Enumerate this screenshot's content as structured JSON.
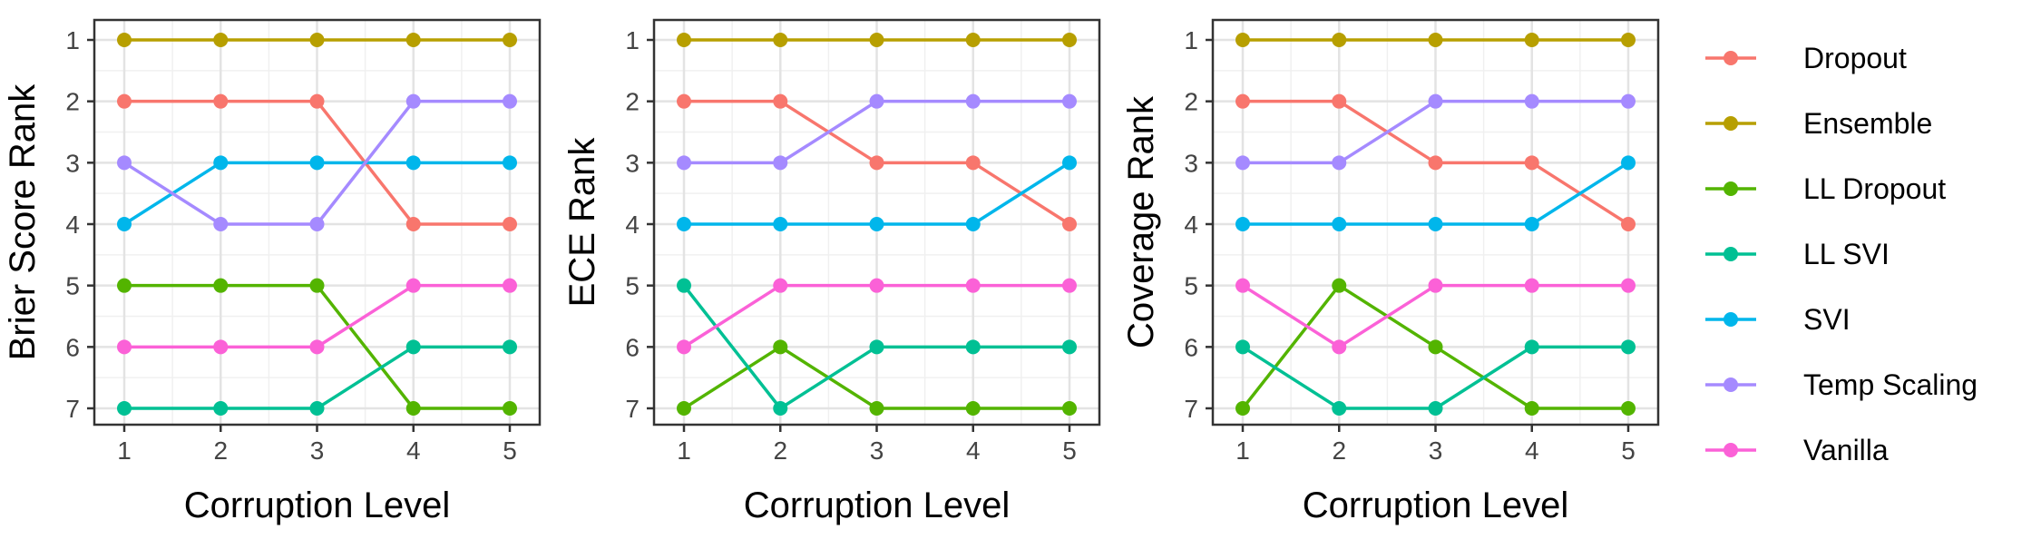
{
  "chart_data": {
    "type": "line",
    "x_categories": [
      1,
      2,
      3,
      4,
      5
    ],
    "xlabel": "Corruption Level",
    "y_ticks": [
      1,
      2,
      3,
      4,
      5,
      6,
      7
    ],
    "ylim": [
      7,
      1
    ],
    "y_reversed": true,
    "grid": true,
    "legend_position": "right",
    "series_styles": [
      {
        "name": "Dropout",
        "color": "#F8766D"
      },
      {
        "name": "Ensemble",
        "color": "#B79F00"
      },
      {
        "name": "LL Dropout",
        "color": "#53B400"
      },
      {
        "name": "LL SVI",
        "color": "#00C094"
      },
      {
        "name": "SVI",
        "color": "#00B6EB"
      },
      {
        "name": "Temp Scaling",
        "color": "#A58AFF"
      },
      {
        "name": "Vanilla",
        "color": "#FB61D7"
      }
    ],
    "panels": [
      {
        "ylabel": "Brier Score Rank",
        "series": [
          {
            "name": "Dropout",
            "values": [
              2,
              2,
              2,
              4,
              4
            ]
          },
          {
            "name": "Ensemble",
            "values": [
              1,
              1,
              1,
              1,
              1
            ]
          },
          {
            "name": "LL Dropout",
            "values": [
              5,
              5,
              5,
              7,
              7
            ]
          },
          {
            "name": "LL SVI",
            "values": [
              7,
              7,
              7,
              6,
              6
            ]
          },
          {
            "name": "SVI",
            "values": [
              4,
              3,
              3,
              3,
              3
            ]
          },
          {
            "name": "Temp Scaling",
            "values": [
              3,
              4,
              4,
              2,
              2
            ]
          },
          {
            "name": "Vanilla",
            "values": [
              6,
              6,
              6,
              5,
              5
            ]
          }
        ]
      },
      {
        "ylabel": "ECE Rank",
        "series": [
          {
            "name": "Dropout",
            "values": [
              2,
              2,
              3,
              3,
              4
            ]
          },
          {
            "name": "Ensemble",
            "values": [
              1,
              1,
              1,
              1,
              1
            ]
          },
          {
            "name": "LL Dropout",
            "values": [
              7,
              6,
              7,
              7,
              7
            ]
          },
          {
            "name": "LL SVI",
            "values": [
              5,
              7,
              6,
              6,
              6
            ]
          },
          {
            "name": "SVI",
            "values": [
              4,
              4,
              4,
              4,
              3
            ]
          },
          {
            "name": "Temp Scaling",
            "values": [
              3,
              3,
              2,
              2,
              2
            ]
          },
          {
            "name": "Vanilla",
            "values": [
              6,
              5,
              5,
              5,
              5
            ]
          }
        ]
      },
      {
        "ylabel": "Coverage Rank",
        "series": [
          {
            "name": "Dropout",
            "values": [
              2,
              2,
              3,
              3,
              4
            ]
          },
          {
            "name": "Ensemble",
            "values": [
              1,
              1,
              1,
              1,
              1
            ]
          },
          {
            "name": "LL Dropout",
            "values": [
              7,
              5,
              6,
              7,
              7
            ]
          },
          {
            "name": "LL SVI",
            "values": [
              6,
              7,
              7,
              6,
              6
            ]
          },
          {
            "name": "SVI",
            "values": [
              4,
              4,
              4,
              4,
              3
            ]
          },
          {
            "name": "Temp Scaling",
            "values": [
              3,
              3,
              2,
              2,
              2
            ]
          },
          {
            "name": "Vanilla",
            "values": [
              5,
              6,
              5,
              5,
              5
            ]
          }
        ]
      }
    ]
  }
}
